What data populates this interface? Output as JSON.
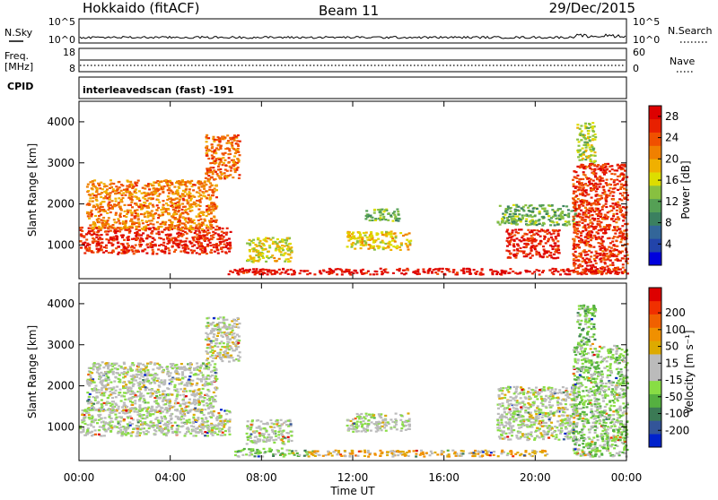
{
  "header": {
    "station": "Hokkaido (fitACF)",
    "beam": "Beam 11",
    "date": "29/Dec/2015"
  },
  "top_panels": {
    "nsky_label": "N.Sky",
    "nsky_ticks": [
      "10^5",
      "10^0"
    ],
    "nsearch_label": "N.Search",
    "nsearch_ticks": [
      "10^5",
      "10^0"
    ],
    "freq_label_1": "Freq.",
    "freq_label_2": "[MHz]",
    "freq_ticks": [
      "18",
      "8"
    ],
    "nave_label": "Nave",
    "nave_ticks": [
      "60",
      "0"
    ],
    "cpid_label": "CPID",
    "cpid_text": "interleavedscan (fast) -191"
  },
  "chart_data": [
    {
      "type": "heatmap",
      "panel": "power",
      "xlabel": "Time UT",
      "ylabel": "Slant Range [km]",
      "x_ticks": [
        "00:00",
        "04:00",
        "08:00",
        "12:00",
        "16:00",
        "20:00",
        "00:00"
      ],
      "y_ticks": [
        "1000",
        "2000",
        "3000",
        "4000"
      ],
      "xlim_hours": [
        0,
        24
      ],
      "ylim_km": [
        180,
        4500
      ],
      "colorbar": {
        "label": "Power [dB]",
        "ticks": [
          "4",
          "8",
          "12",
          "16",
          "20",
          "24",
          "28"
        ],
        "range": [
          0,
          30
        ],
        "colors": [
          "#0000dd",
          "#2244aa",
          "#336699",
          "#3b8060",
          "#55a055",
          "#88c040",
          "#dddd00",
          "#f0b000",
          "#f08000",
          "#f05000",
          "#e82000",
          "#dd0000"
        ]
      },
      "regions": [
        {
          "t0": 0.0,
          "t1": 6.6,
          "r0": 800,
          "r1": 1450,
          "level": 0.88
        },
        {
          "t0": 0.3,
          "t1": 6.0,
          "r0": 1400,
          "r1": 2600,
          "level": 0.72
        },
        {
          "t0": 5.5,
          "t1": 7.0,
          "r0": 2600,
          "r1": 3700,
          "level": 0.75
        },
        {
          "t0": 6.5,
          "t1": 23.8,
          "r0": 300,
          "r1": 450,
          "level": 0.95
        },
        {
          "t0": 7.3,
          "t1": 9.3,
          "r0": 600,
          "r1": 1200,
          "level": 0.55
        },
        {
          "t0": 11.7,
          "t1": 14.5,
          "r0": 900,
          "r1": 1350,
          "level": 0.6
        },
        {
          "t0": 12.5,
          "t1": 14.0,
          "r0": 1600,
          "r1": 1900,
          "level": 0.4
        },
        {
          "t0": 18.3,
          "t1": 21.8,
          "r0": 1500,
          "r1": 2000,
          "level": 0.4
        },
        {
          "t0": 18.7,
          "t1": 21.0,
          "r0": 700,
          "r1": 1400,
          "level": 0.9
        },
        {
          "t0": 21.6,
          "t1": 24.0,
          "r0": 300,
          "r1": 3000,
          "level": 0.85
        },
        {
          "t0": 21.8,
          "t1": 22.6,
          "r0": 3000,
          "r1": 4000,
          "level": 0.5
        }
      ]
    },
    {
      "type": "heatmap",
      "panel": "velocity",
      "xlabel": "Time UT",
      "ylabel": "Slant Range [km]",
      "x_ticks": [
        "00:00",
        "04:00",
        "08:00",
        "12:00",
        "16:00",
        "20:00",
        "00:00"
      ],
      "y_ticks": [
        "1000",
        "2000",
        "3000",
        "4000"
      ],
      "xlim_hours": [
        0,
        24
      ],
      "ylim_km": [
        180,
        4500
      ],
      "colorbar": {
        "label": "Velocity [m s⁻¹]",
        "ticks": [
          "200",
          "100",
          "50",
          "15",
          "-15",
          "-50",
          "-100",
          "-200"
        ],
        "colors": [
          "#0022cc",
          "#335599",
          "#3b7a55",
          "#55b040",
          "#88dd44",
          "#bbbbbb",
          "#bbbbbb",
          "#ddaa00",
          "#f09000",
          "#f06000",
          "#f03000",
          "#dd0000"
        ]
      },
      "regions": [
        {
          "t0": 0.0,
          "t1": 6.6,
          "r0": 800,
          "r1": 1450,
          "level": 0.47
        },
        {
          "t0": 0.3,
          "t1": 6.0,
          "r0": 1400,
          "r1": 2600,
          "level": 0.48
        },
        {
          "t0": 5.5,
          "t1": 7.0,
          "r0": 2600,
          "r1": 3700,
          "level": 0.5
        },
        {
          "t0": 6.8,
          "t1": 10.0,
          "r0": 300,
          "r1": 500,
          "level": 0.35
        },
        {
          "t0": 10.0,
          "t1": 20.5,
          "r0": 300,
          "r1": 450,
          "level": 0.62
        },
        {
          "t0": 7.3,
          "t1": 9.3,
          "r0": 600,
          "r1": 1200,
          "level": 0.47
        },
        {
          "t0": 11.7,
          "t1": 14.5,
          "r0": 900,
          "r1": 1350,
          "level": 0.47
        },
        {
          "t0": 18.3,
          "t1": 21.8,
          "r0": 700,
          "r1": 2000,
          "level": 0.48
        },
        {
          "t0": 21.6,
          "t1": 24.0,
          "r0": 300,
          "r1": 3000,
          "level": 0.38
        },
        {
          "t0": 21.8,
          "t1": 22.6,
          "r0": 3000,
          "r1": 4000,
          "level": 0.35
        }
      ]
    }
  ]
}
